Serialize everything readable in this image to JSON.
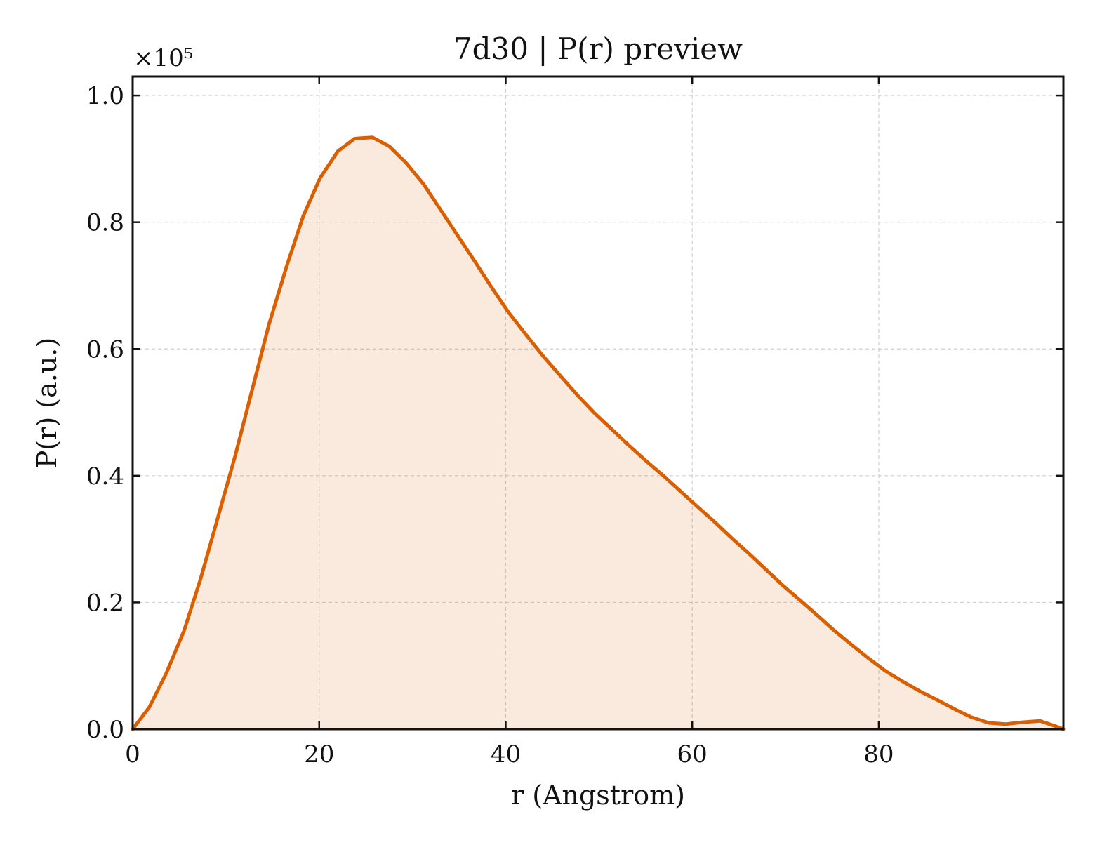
{
  "chart_data": {
    "type": "area",
    "title": "7d30 | P(r) preview",
    "xlabel": "r (Angstrom)",
    "ylabel": "P(r) (a.u.)",
    "y_offset_label": "×10⁵",
    "y_scale_factor": 100000,
    "xlim": [
      0,
      99.8
    ],
    "ylim": [
      0,
      1.03
    ],
    "x_ticks": [
      0,
      20,
      40,
      60,
      80
    ],
    "x_tick_labels": [
      "0",
      "20",
      "40",
      "60",
      "80"
    ],
    "y_ticks": [
      0.0,
      0.2,
      0.4,
      0.6,
      0.8,
      1.0
    ],
    "y_tick_labels": [
      "0.0",
      "0.2",
      "0.4",
      "0.6",
      "0.8",
      "1.0"
    ],
    "grid": true,
    "line_color": "#d95f02",
    "fill_color": "#d95f02",
    "x": [
      0,
      1.8,
      3.6,
      5.5,
      7.3,
      9.1,
      11.0,
      12.8,
      14.6,
      16.5,
      18.3,
      20.1,
      22.0,
      23.8,
      25.7,
      27.5,
      29.3,
      31.2,
      33.0,
      34.8,
      36.7,
      38.5,
      40.3,
      42.2,
      44.0,
      45.9,
      47.7,
      49.5,
      51.4,
      53.2,
      55.0,
      56.9,
      58.7,
      60.5,
      62.4,
      64.2,
      66.1,
      67.9,
      69.7,
      71.6,
      73.4,
      75.2,
      77.1,
      78.9,
      80.7,
      82.6,
      84.4,
      86.3,
      88.1,
      89.9,
      91.8,
      93.6,
      95.4,
      97.3,
      99.1,
      99.8
    ],
    "values": [
      0.0,
      0.035,
      0.088,
      0.155,
      0.238,
      0.332,
      0.432,
      0.535,
      0.638,
      0.73,
      0.81,
      0.87,
      0.912,
      0.932,
      0.934,
      0.92,
      0.894,
      0.86,
      0.82,
      0.78,
      0.738,
      0.697,
      0.658,
      0.622,
      0.589,
      0.557,
      0.527,
      0.499,
      0.473,
      0.448,
      0.424,
      0.4,
      0.376,
      0.352,
      0.327,
      0.302,
      0.277,
      0.252,
      0.227,
      0.203,
      0.18,
      0.156,
      0.133,
      0.112,
      0.092,
      0.075,
      0.06,
      0.046,
      0.032,
      0.019,
      0.01,
      0.008,
      0.011,
      0.013,
      0.004,
      0.0
    ]
  }
}
